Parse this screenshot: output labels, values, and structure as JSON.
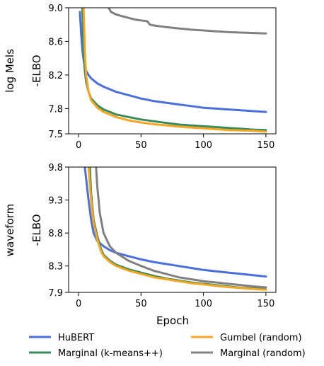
{
  "chart_data": [
    {
      "type": "line",
      "row_label": "log Mels",
      "ylabel": "-ELBO",
      "xlabel": "",
      "xlim": [
        -8,
        158
      ],
      "ylim": [
        7.5,
        9.0
      ],
      "xticks": [
        0,
        50,
        100,
        150
      ],
      "yticks": [
        7.5,
        7.8,
        8.2,
        8.6,
        9.0
      ],
      "ytick_labels": [
        "7.5",
        "7.8",
        "8.2",
        "8.6",
        "9.0"
      ],
      "series": [
        {
          "name": "HuBERT",
          "color": "#4a6fdc",
          "x": [
            1,
            2,
            3,
            4,
            5,
            6,
            8,
            10,
            15,
            20,
            30,
            40,
            50,
            60,
            70,
            80,
            90,
            100,
            110,
            120,
            130,
            140,
            150
          ],
          "y": [
            8.95,
            8.7,
            8.5,
            8.38,
            8.3,
            8.25,
            8.2,
            8.16,
            8.1,
            8.06,
            8.0,
            7.96,
            7.92,
            7.89,
            7.87,
            7.85,
            7.83,
            7.81,
            7.8,
            7.79,
            7.78,
            7.77,
            7.76
          ]
        },
        {
          "name": "Marginal (k-means++)",
          "color": "#3a8a5c",
          "x": [
            3,
            4,
            5,
            6,
            8,
            10,
            15,
            20,
            30,
            40,
            50,
            60,
            70,
            80,
            90,
            100,
            110,
            120,
            130,
            140,
            150
          ],
          "y": [
            9.0,
            8.5,
            8.25,
            8.12,
            8.0,
            7.92,
            7.84,
            7.79,
            7.73,
            7.7,
            7.67,
            7.65,
            7.63,
            7.61,
            7.6,
            7.59,
            7.58,
            7.57,
            7.56,
            7.55,
            7.545
          ]
        },
        {
          "name": "Gumbel (random)",
          "color": "#f5a623",
          "x": [
            4,
            5,
            6,
            8,
            10,
            15,
            20,
            30,
            40,
            50,
            60,
            70,
            80,
            90,
            100,
            110,
            120,
            130,
            140,
            150
          ],
          "y": [
            9.0,
            8.5,
            8.2,
            8.0,
            7.9,
            7.81,
            7.76,
            7.7,
            7.66,
            7.635,
            7.615,
            7.6,
            7.585,
            7.575,
            7.565,
            7.555,
            7.545,
            7.54,
            7.535,
            7.525
          ]
        },
        {
          "name": "Marginal (random)",
          "color": "#808080",
          "x": [
            24,
            26,
            30,
            35,
            40,
            45,
            50,
            55,
            57,
            60,
            70,
            80,
            90,
            100,
            110,
            120,
            130,
            140,
            150
          ],
          "y": [
            9.0,
            8.95,
            8.92,
            8.9,
            8.88,
            8.86,
            8.85,
            8.84,
            8.8,
            8.79,
            8.77,
            8.755,
            8.74,
            8.73,
            8.72,
            8.71,
            8.705,
            8.7,
            8.695
          ]
        }
      ]
    },
    {
      "type": "line",
      "row_label": "waveform",
      "ylabel": "-ELBO",
      "xlabel": "Epoch",
      "xlim": [
        -8,
        158
      ],
      "ylim": [
        7.9,
        9.8
      ],
      "xticks": [
        0,
        50,
        100,
        150
      ],
      "yticks": [
        7.9,
        8.3,
        8.8,
        9.3,
        9.8
      ],
      "ytick_labels": [
        "7.9",
        "8.3",
        "8.8",
        "9.3",
        "9.8"
      ],
      "series": [
        {
          "name": "HuBERT",
          "color": "#4a6fdc",
          "x": [
            5,
            8,
            10,
            12,
            15,
            20,
            25,
            30,
            40,
            50,
            60,
            70,
            80,
            90,
            100,
            110,
            120,
            130,
            140,
            150
          ],
          "y": [
            9.8,
            9.3,
            9.0,
            8.8,
            8.68,
            8.6,
            8.54,
            8.5,
            8.45,
            8.4,
            8.36,
            8.33,
            8.3,
            8.27,
            8.24,
            8.22,
            8.2,
            8.18,
            8.16,
            8.14
          ]
        },
        {
          "name": "Marginal (k-means++)",
          "color": "#3a8a5c",
          "x": [
            9,
            10,
            12,
            15,
            18,
            20,
            25,
            30,
            40,
            50,
            60,
            70,
            80,
            90,
            100,
            110,
            120,
            130,
            140,
            150
          ],
          "y": [
            9.8,
            9.4,
            9.0,
            8.75,
            8.55,
            8.47,
            8.38,
            8.32,
            8.25,
            8.2,
            8.15,
            8.11,
            8.08,
            8.05,
            8.03,
            8.01,
            7.99,
            7.97,
            7.96,
            7.945
          ]
        },
        {
          "name": "Gumbel (random)",
          "color": "#f5a623",
          "x": [
            8,
            10,
            12,
            15,
            18,
            20,
            25,
            30,
            40,
            50,
            60,
            70,
            80,
            90,
            100,
            110,
            120,
            130,
            140,
            150
          ],
          "y": [
            9.8,
            9.3,
            8.95,
            8.7,
            8.52,
            8.45,
            8.36,
            8.3,
            8.23,
            8.18,
            8.13,
            8.1,
            8.07,
            8.04,
            8.02,
            8.0,
            7.98,
            7.965,
            7.95,
            7.94
          ]
        },
        {
          "name": "Marginal (random)",
          "color": "#808080",
          "x": [
            14,
            15,
            17,
            20,
            25,
            30,
            40,
            50,
            60,
            70,
            80,
            90,
            100,
            110,
            120,
            130,
            140,
            150
          ],
          "y": [
            9.8,
            9.5,
            9.1,
            8.8,
            8.6,
            8.5,
            8.38,
            8.3,
            8.23,
            8.18,
            8.13,
            8.1,
            8.07,
            8.05,
            8.03,
            8.01,
            7.99,
            7.975
          ]
        }
      ]
    }
  ],
  "legend": {
    "placement": "bottom",
    "entries": [
      {
        "name": "HuBERT",
        "color": "#4a6fdc"
      },
      {
        "name": "Gumbel (random)",
        "color": "#f5a623"
      },
      {
        "name": "Marginal (k-means++)",
        "color": "#3a8a5c"
      },
      {
        "name": "Marginal (random)",
        "color": "#808080"
      }
    ]
  }
}
